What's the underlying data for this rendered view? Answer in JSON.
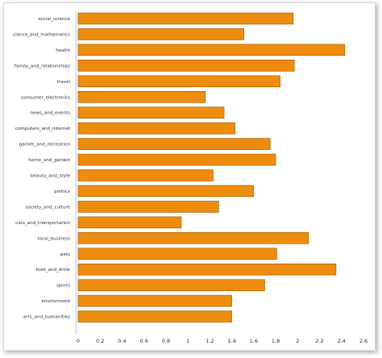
{
  "chart_data": {
    "type": "bar",
    "orientation": "horizontal",
    "title": "",
    "xlabel": "",
    "ylabel": "",
    "xlim": [
      0,
      2.6
    ],
    "x_ticks": [
      "0",
      "0.2",
      "0.4",
      "0.6",
      "0.8",
      "1",
      "1.2",
      "1.4",
      "1.6",
      "1.8",
      "2",
      "2.2",
      "2.4",
      "2.6"
    ],
    "grid": false,
    "legend": "none",
    "bar_color": "#ee8c0e",
    "bar_edge_color": "#a35d00",
    "categories": [
      "social_science",
      "cience_and_mathematics",
      "health",
      "family_and_relationships",
      "travel",
      "consumer_electronics",
      "news_and_events",
      "computers_and_internet",
      "games_and_recreation",
      "home_and_garden",
      "beauty_and_style",
      "politics",
      "society_and_culture",
      "cars_and_transportation",
      "local_business",
      "pets",
      "food_and_drink",
      "sports",
      "environment",
      "arts_and_humanities"
    ],
    "values": [
      1.96,
      1.51,
      2.43,
      1.97,
      1.84,
      1.16,
      1.33,
      1.43,
      1.75,
      1.8,
      1.23,
      1.6,
      1.28,
      0.94,
      2.1,
      1.81,
      2.35,
      1.7,
      1.4,
      1.4
    ]
  }
}
